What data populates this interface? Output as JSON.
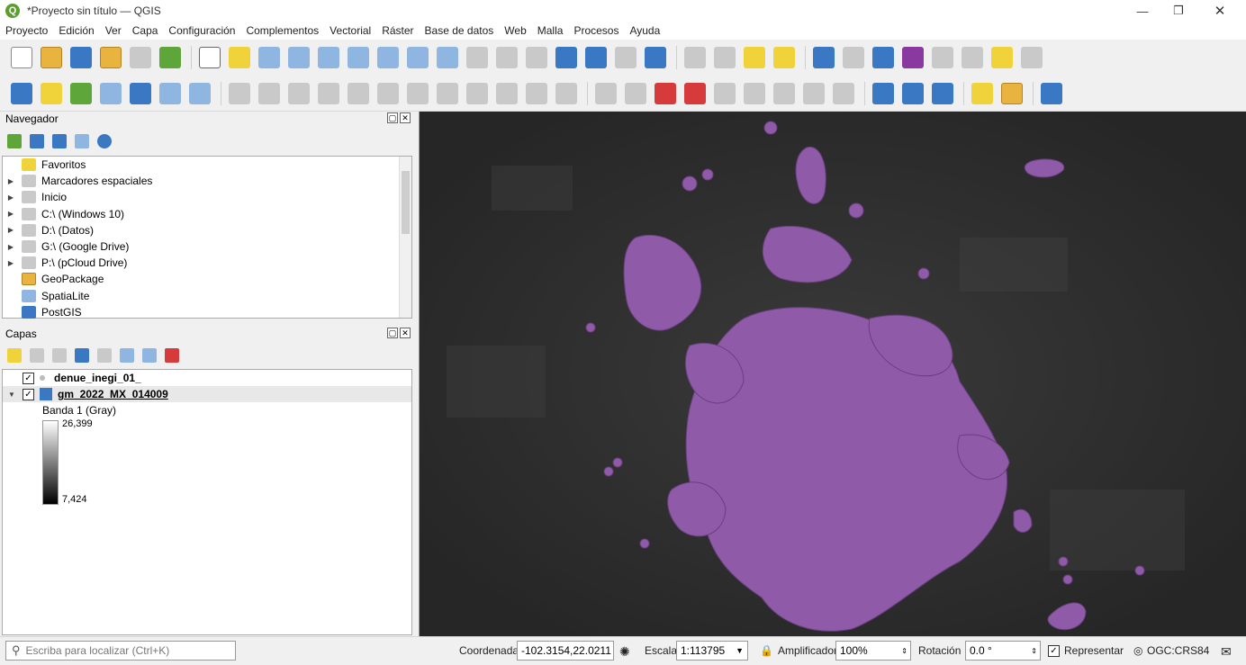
{
  "window": {
    "title": "*Proyecto sin título — QGIS"
  },
  "menu": [
    "Proyecto",
    "Edición",
    "Ver",
    "Capa",
    "Configuración",
    "Complementos",
    "Vectorial",
    "Ráster",
    "Base de datos",
    "Web",
    "Malla",
    "Procesos",
    "Ayuda"
  ],
  "navigator": {
    "title": "Navegador",
    "items": [
      {
        "label": "Favoritos",
        "expandable": false
      },
      {
        "label": "Marcadores espaciales",
        "expandable": true
      },
      {
        "label": "Inicio",
        "expandable": true
      },
      {
        "label": "C:\\ (Windows 10)",
        "expandable": true
      },
      {
        "label": "D:\\ (Datos)",
        "expandable": true
      },
      {
        "label": "G:\\ (Google Drive)",
        "expandable": true
      },
      {
        "label": "P:\\ (pCloud Drive)",
        "expandable": true
      },
      {
        "label": "GeoPackage",
        "expandable": false
      },
      {
        "label": "SpatiaLite",
        "expandable": false
      },
      {
        "label": "PostGIS",
        "expandable": false
      }
    ]
  },
  "layers": {
    "title": "Capas",
    "items": [
      {
        "name": "denue_inegi_01_",
        "checked": true
      },
      {
        "name": "gm_2022_MX_014009",
        "checked": true
      }
    ],
    "band_label": "Banda 1 (Gray)",
    "ramp_max": "26,399",
    "ramp_min": "7,424"
  },
  "statusbar": {
    "locator_placeholder": "Escriba para localizar (Ctrl+K)",
    "coord_label": "Coordenada",
    "coord_value": "-102.3154,22.0211",
    "scale_label": "Escala",
    "scale_value": "1:113795",
    "magnifier_label": "Amplificador",
    "magnifier_value": "100%",
    "rotation_label": "Rotación",
    "rotation_value": "0.0 °",
    "render_label": "Representar",
    "render_checked": true,
    "crs": "OGC:CRS84"
  },
  "colors": {
    "points": "#8f5aa8",
    "map_bg": "#2c2c2c"
  }
}
